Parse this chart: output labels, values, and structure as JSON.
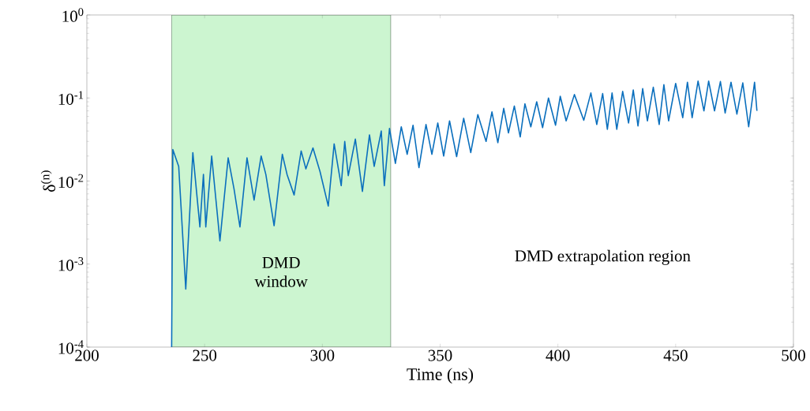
{
  "chart_data": {
    "type": "line",
    "xlabel": "Time (ns)",
    "ylabel": "δ$^{(n)}$",
    "log": "y",
    "xlim": [
      200,
      500
    ],
    "ylim": [
      0.0001,
      1
    ],
    "xticks": [
      200,
      250,
      300,
      350,
      400,
      450,
      500
    ],
    "yticks": [
      {
        "value": 0.0001,
        "label": "10$^{-4}$"
      },
      {
        "value": 0.001,
        "label": "10$^{-3}$"
      },
      {
        "value": 0.01,
        "label": "10$^{-2}$"
      },
      {
        "value": 0.1,
        "label": "10$^{-1}$"
      },
      {
        "value": 1,
        "label": "10$^{0}$"
      }
    ],
    "grid": false,
    "marker": "none",
    "line_style": "solid",
    "bands": [
      {
        "axis": "x",
        "from": 236,
        "to": 329,
        "label": "DMD window",
        "color": "#ccf5d0"
      }
    ],
    "annotations": [
      "DMD extrapolation region"
    ],
    "series": [
      {
        "color": "#0a6fbd",
        "x": [
          236,
          236.5,
          239,
          242,
          245,
          248,
          249.5,
          250.5,
          253,
          256.5,
          260,
          262.5,
          265,
          268,
          271,
          274,
          276,
          279.5,
          283,
          285,
          288,
          291,
          293,
          296,
          299,
          302.5,
          305,
          308,
          309.5,
          311,
          314,
          317,
          320,
          322,
          325,
          326.3,
          328.5,
          331,
          333.5,
          336,
          338.5,
          341,
          344,
          346.5,
          349,
          351.5,
          354,
          357,
          360,
          363,
          366,
          369.5,
          372,
          374.5,
          377,
          379,
          381.5,
          384,
          386,
          388.5,
          391,
          393.5,
          396,
          399,
          401,
          403.5,
          407,
          411,
          414,
          416.5,
          419,
          421,
          423,
          425,
          427.5,
          430,
          432,
          434,
          436,
          438,
          440.5,
          443,
          445,
          447,
          450,
          453,
          455,
          457,
          459.5,
          462,
          464,
          466.5,
          469,
          471,
          473.5,
          476,
          478.5,
          481,
          483.5,
          484.5
        ],
        "values": [
          0.0001,
          0.024,
          0.015,
          0.0005,
          0.022,
          0.0028,
          0.012,
          0.0028,
          0.02,
          0.0019,
          0.019,
          0.008,
          0.0028,
          0.019,
          0.0059,
          0.02,
          0.012,
          0.0029,
          0.021,
          0.012,
          0.0068,
          0.023,
          0.014,
          0.025,
          0.013,
          0.005,
          0.028,
          0.0088,
          0.03,
          0.0116,
          0.032,
          0.0075,
          0.036,
          0.015,
          0.04,
          0.0088,
          0.043,
          0.0163,
          0.045,
          0.021,
          0.047,
          0.0145,
          0.048,
          0.021,
          0.05,
          0.02,
          0.053,
          0.0197,
          0.057,
          0.022,
          0.063,
          0.03,
          0.068,
          0.029,
          0.075,
          0.038,
          0.08,
          0.034,
          0.085,
          0.045,
          0.09,
          0.044,
          0.1,
          0.047,
          0.105,
          0.053,
          0.11,
          0.054,
          0.115,
          0.048,
          0.113,
          0.042,
          0.115,
          0.042,
          0.12,
          0.05,
          0.125,
          0.046,
          0.13,
          0.053,
          0.135,
          0.048,
          0.145,
          0.053,
          0.15,
          0.058,
          0.155,
          0.058,
          0.16,
          0.07,
          0.16,
          0.07,
          0.158,
          0.066,
          0.155,
          0.064,
          0.152,
          0.045,
          0.155,
          0.07
        ]
      }
    ]
  }
}
